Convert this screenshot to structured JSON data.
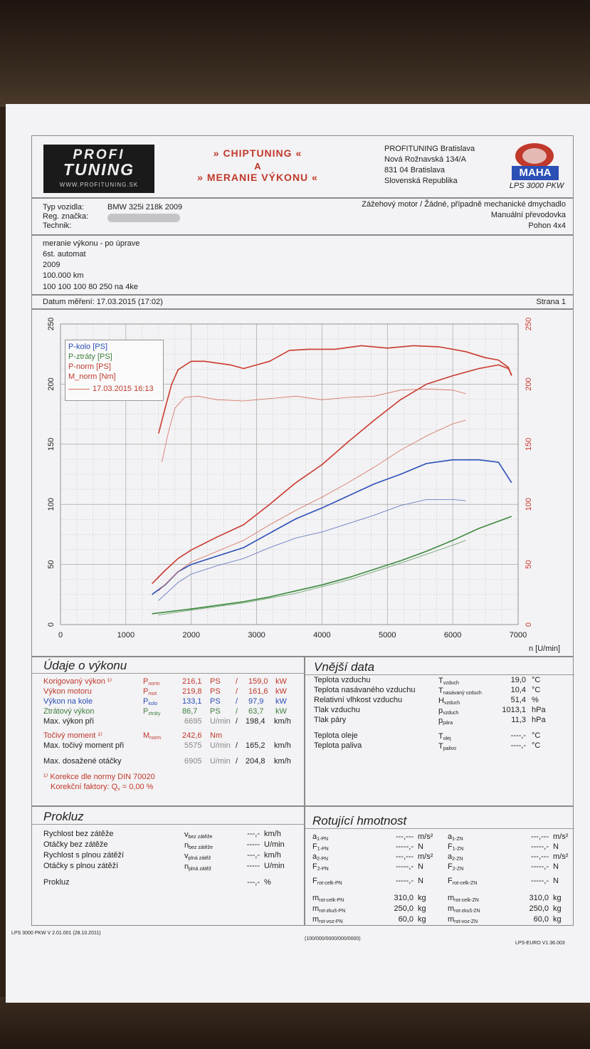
{
  "header": {
    "logo_line1": "PROFI",
    "logo_line2": "TUNING",
    "logo_url": "WWW.PROFITUNING.SK",
    "title_line1": "» CHIPTUNING «",
    "title_line2": "A",
    "title_line3": "» MERANIE VÝKONU «",
    "address": [
      "PROFITUNING Bratislava",
      "Nová Rožnavská 134/A",
      "831 04 Bratislava",
      "Slovenská Republika"
    ],
    "maha_text": "MAHA",
    "maha_model": "LPS 3000 PKW"
  },
  "vehicle": {
    "type_label": "Typ vozidla:",
    "type_value": "BMW 325i 218k 2009",
    "reg_label": "Reg. značka:",
    "tech_label": "Technik:",
    "engine": "Zážehový motor / Žádné, případně mechanické dmychadlo",
    "gearbox": "Manuální převodovka",
    "drive": "Pohon 4x4"
  },
  "notes": [
    "meranie výkonu - po úprave",
    "6st. automat",
    "2009",
    "100.000 km",
    "100 100 100 80 250 na 4ke"
  ],
  "date_line": "Datum měření: 17.03.2015 (17:02)",
  "page": "Strana 1",
  "chart_data": {
    "type": "line",
    "x_label": "n [U/min]",
    "x_ticks": [
      0,
      1000,
      2000,
      3000,
      4000,
      5000,
      6000,
      7000
    ],
    "y_left_ticks": [
      0,
      50,
      100,
      150,
      200,
      250
    ],
    "y_right_ticks": [
      0,
      50,
      100,
      150,
      200,
      250
    ],
    "xlim": [
      0,
      7000
    ],
    "ylim": [
      0,
      250
    ],
    "legend": [
      "P-kolo [PS]",
      "P-ztráty [PS]",
      "P-norm [PS]",
      "M_norm [Nm]",
      "17.03.2015 16:13"
    ],
    "series": [
      {
        "name": "P-kolo [PS]",
        "color": "#2b4fb8",
        "width": 1.6,
        "x": [
          1400,
          1600,
          1800,
          2000,
          2400,
          2800,
          3200,
          3600,
          4000,
          4400,
          4800,
          5200,
          5600,
          6000,
          6400,
          6700,
          6900
        ],
        "y": [
          25,
          33,
          44,
          50,
          57,
          64,
          76,
          88,
          97,
          107,
          117,
          125,
          134,
          137,
          137,
          135,
          118
        ]
      },
      {
        "name": "P-ztráty [PS]",
        "color": "#3d8a3d",
        "width": 1.6,
        "x": [
          1400,
          2000,
          2800,
          3200,
          3600,
          4000,
          4400,
          4800,
          5200,
          5600,
          6000,
          6400,
          6900
        ],
        "y": [
          9,
          13,
          19,
          23,
          28,
          33,
          39,
          46,
          53,
          61,
          70,
          80,
          90
        ]
      },
      {
        "name": "P-norm [PS]",
        "color": "#c93a2e",
        "width": 1.6,
        "x": [
          1400,
          1600,
          1800,
          2000,
          2400,
          2800,
          3200,
          3600,
          4000,
          4400,
          4800,
          5200,
          5600,
          6000,
          6400,
          6700,
          6850,
          6900
        ],
        "y": [
          34,
          45,
          55,
          62,
          73,
          83,
          100,
          118,
          133,
          152,
          170,
          187,
          200,
          207,
          213,
          216,
          213,
          208
        ]
      },
      {
        "name": "M_norm [Nm]",
        "color": "#c93a2e",
        "width": 1.6,
        "x": [
          1500,
          1600,
          1700,
          1800,
          2000,
          2200,
          2600,
          2800,
          3000,
          3200,
          3500,
          3800,
          4200,
          4600,
          5000,
          5400,
          5800,
          6200,
          6500,
          6700,
          6850,
          6900
        ],
        "y": [
          159,
          180,
          200,
          212,
          219,
          219,
          216,
          213,
          216,
          219,
          228,
          229,
          229,
          232,
          230,
          232,
          231,
          227,
          222,
          220,
          214,
          207
        ]
      },
      {
        "name": "P-kolo before",
        "color": "#5a6fc0",
        "width": 0.8,
        "x": [
          1500,
          1800,
          2000,
          2400,
          2800,
          3200,
          3600,
          4000,
          4400,
          4800,
          5200,
          5600,
          6000,
          6200
        ],
        "y": [
          20,
          35,
          42,
          49,
          55,
          64,
          72,
          77,
          84,
          91,
          99,
          104,
          104,
          103
        ]
      },
      {
        "name": "P-ztráty before",
        "color": "#5f9a5f",
        "width": 0.8,
        "x": [
          1500,
          2000,
          2800,
          3600,
          4400,
          5200,
          6000,
          6200
        ],
        "y": [
          8,
          12,
          18,
          26,
          37,
          51,
          66,
          70
        ]
      },
      {
        "name": "P-norm before",
        "color": "#d6705f",
        "width": 0.8,
        "x": [
          1500,
          1800,
          2000,
          2400,
          2800,
          3200,
          3600,
          4000,
          4400,
          4800,
          5200,
          5600,
          6000,
          6200
        ],
        "y": [
          28,
          44,
          52,
          61,
          70,
          83,
          95,
          106,
          118,
          131,
          145,
          157,
          167,
          170
        ]
      },
      {
        "name": "M_norm before",
        "color": "#d6705f",
        "width": 0.8,
        "x": [
          1550,
          1650,
          1750,
          1900,
          2100,
          2400,
          2800,
          3200,
          3600,
          4000,
          4400,
          4800,
          5200,
          5600,
          6000,
          6200
        ],
        "y": [
          135,
          160,
          180,
          189,
          190,
          187,
          186,
          188,
          190,
          187,
          189,
          190,
          195,
          196,
          195,
          192
        ]
      }
    ]
  },
  "performance": {
    "title": "Údaje o výkonu",
    "rows": [
      {
        "label": "Korigovaný výkon ¹⁾",
        "sym": "P",
        "sub": "norm",
        "v1": "216,1",
        "u1": "PS",
        "sep": "/",
        "v2": "159,0",
        "u2": "kW"
      },
      {
        "label": "Výkon motoru",
        "sym": "P",
        "sub": "mot",
        "v1": "219,8",
        "u1": "PS",
        "sep": "/",
        "v2": "161,6",
        "u2": "kW"
      },
      {
        "label": "Výkon na kole",
        "sym": "P",
        "sub": "kolo",
        "v1": "133,1",
        "u1": "PS",
        "sep": "/",
        "v2": "97,9",
        "u2": "kW"
      },
      {
        "label": "Ztrátový výkon",
        "sym": "P",
        "sub": "ztráty",
        "v1": "86,7",
        "u1": "PS",
        "sep": "/",
        "v2": "63,7",
        "u2": "kW"
      }
    ],
    "max_power_label": "Max. výkon při",
    "max_power_rpm": "6695",
    "max_power_rpm_unit": "U/min",
    "max_power_speed": "198,4",
    "speed_unit": "km/h",
    "torque_label": "Točivý moment ¹⁾",
    "torque_sym": "M",
    "torque_sub": "norm",
    "torque_value": "242,6",
    "torque_unit": "Nm",
    "max_torque_label": "Max. točivý moment při",
    "max_torque_rpm": "5575",
    "max_torque_speed": "165,2",
    "max_rpm_label": "Max. dosažené otáčky",
    "max_rpm": "6905",
    "max_rpm_speed": "204,8",
    "correction_line": "¹⁾ Korekce dle normy DIN 70020",
    "factor_label": "Korekční faktory: Q",
    "factor_sub": "v",
    "factor_value": "=   0,00 %"
  },
  "external": {
    "title": "Vnější data",
    "rows": [
      {
        "label": "Teplota vzduchu",
        "sym": "T",
        "sub": "vzduch",
        "value": "19,0",
        "unit": "°C"
      },
      {
        "label": "Teplota nasávaného vzduchu",
        "sym": "T",
        "sub": "nasávaný vzduch",
        "value": "10,4",
        "unit": "°C"
      },
      {
        "label": "Relativní vlhkost vzduchu",
        "sym": "H",
        "sub": "vzduch",
        "value": "51,4",
        "unit": "%"
      },
      {
        "label": "Tlak vzduchu",
        "sym": "p",
        "sub": "vzduch",
        "value": "1013,1",
        "unit": "hPa"
      },
      {
        "label": "Tlak páry",
        "sym": "p",
        "sub": "pára",
        "value": "11,3",
        "unit": "hPa"
      },
      {
        "label": "Teplota oleje",
        "sym": "T",
        "sub": "olej",
        "value": "----,-",
        "unit": "°C"
      },
      {
        "label": "Teplota paliva",
        "sym": "T",
        "sub": "palivo",
        "value": "----,-",
        "unit": "°C"
      }
    ]
  },
  "slip": {
    "title": "Prokluz",
    "rows": [
      {
        "label": "Rychlost bez zátěže",
        "sym": "v",
        "sub": "bez zátěže",
        "value": "---,-",
        "unit": "km/h"
      },
      {
        "label": "Otáčky bez zátěže",
        "sym": "n",
        "sub": "bez zátěže",
        "value": "-----",
        "unit": "U/min"
      },
      {
        "label": "Rychlost s plnou zátěží",
        "sym": "v",
        "sub": "plná zátěž",
        "value": "---,-",
        "unit": "km/h"
      },
      {
        "label": "Otáčky s plnou zátěží",
        "sym": "n",
        "sub": "plná zátěž",
        "value": "-----",
        "unit": "U/min"
      }
    ],
    "prokluz_label": "Prokluz",
    "prokluz_value": "---,-",
    "prokluz_unit": "%"
  },
  "rotating": {
    "title": "Rotující hmotnost",
    "left": [
      {
        "sym": "a",
        "sub": "1-PN",
        "value": "---,---",
        "unit": "m/s²"
      },
      {
        "sym": "F",
        "sub": "1-PN",
        "value": "-----,-",
        "unit": "N"
      },
      {
        "sym": "a",
        "sub": "2-PN",
        "value": "---,---",
        "unit": "m/s²"
      },
      {
        "sym": "F",
        "sub": "2-PN",
        "value": "-----,-",
        "unit": "N"
      },
      {
        "sym": "F",
        "sub": "rot-celk-PN",
        "value": "-----,-",
        "unit": "N"
      },
      {
        "sym": "m",
        "sub": "rot-celk-PN",
        "value": "310,0",
        "unit": "kg"
      },
      {
        "sym": "m",
        "sub": "rot-zkuš-PN",
        "value": "250,0",
        "unit": "kg"
      },
      {
        "sym": "m",
        "sub": "rot-voz-PN",
        "value": "60,0",
        "unit": "kg"
      }
    ],
    "right": [
      {
        "sym": "a",
        "sub": "1-ZN",
        "value": "---,---",
        "unit": "m/s²"
      },
      {
        "sym": "F",
        "sub": "1-ZN",
        "value": "-----,-",
        "unit": "N"
      },
      {
        "sym": "a",
        "sub": "2-ZN",
        "value": "---,---",
        "unit": "m/s²"
      },
      {
        "sym": "F",
        "sub": "2-ZN",
        "value": "-----,-",
        "unit": "N"
      },
      {
        "sym": "F",
        "sub": "rot-celk-ZN",
        "value": "-----,-",
        "unit": "N"
      },
      {
        "sym": "m",
        "sub": "rot-celk-ZN",
        "value": "310,0",
        "unit": "kg"
      },
      {
        "sym": "m",
        "sub": "rot-zkuš-ZN",
        "value": "250,0",
        "unit": "kg"
      },
      {
        "sym": "m",
        "sub": "rot-voz-ZN",
        "value": "60,0",
        "unit": "kg"
      }
    ]
  },
  "footer": {
    "left": "LPS 3000 PKW V 2.01.001 (28.10.2011)",
    "center": "(100/000/0000/000/0000)",
    "right": "LPS-EURO V1.36.003"
  }
}
